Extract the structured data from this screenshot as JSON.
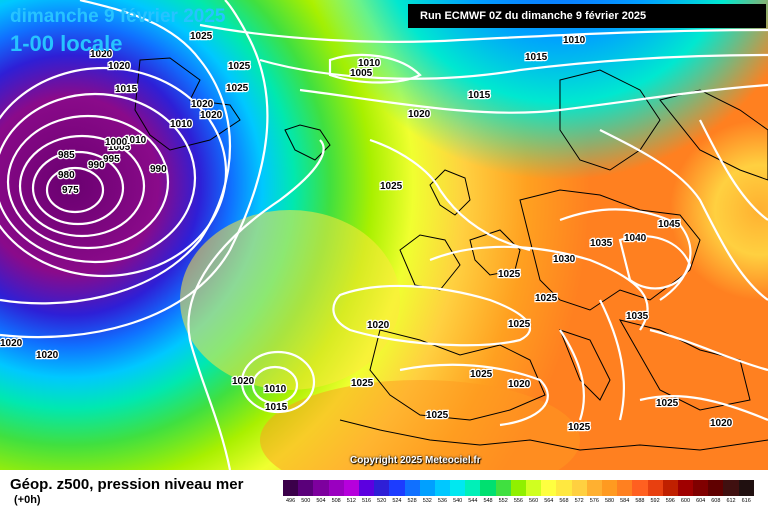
{
  "header": {
    "date": "dimanche 9 février 2025",
    "time": "1-00 locale",
    "run": "Run ECMWF 0Z du dimanche 9 février 2025"
  },
  "copyright": "Copyright 2025 Meteociel.fr",
  "legend": {
    "title": "Géop. z500, pression niveau mer",
    "subtitle": "(+0h)",
    "ticks": [
      "496",
      "500",
      "504",
      "508",
      "512",
      "516",
      "520",
      "524",
      "528",
      "532",
      "536",
      "540",
      "544",
      "548",
      "552",
      "556",
      "560",
      "564",
      "568",
      "572",
      "576",
      "580",
      "584",
      "588",
      "592",
      "596",
      "600",
      "604",
      "608",
      "612",
      "616"
    ],
    "colors": [
      "#3b004a",
      "#5a007a",
      "#7d009e",
      "#9a00c0",
      "#b600dc",
      "#5c00e0",
      "#2e1fd6",
      "#1c3cff",
      "#1070ff",
      "#00a0ff",
      "#00c8ff",
      "#00e8f0",
      "#00f0b8",
      "#00e070",
      "#40e040",
      "#90f000",
      "#d0ff20",
      "#ffff40",
      "#ffe840",
      "#ffd040",
      "#ffb030",
      "#ff9a20",
      "#ff8020",
      "#ff6020",
      "#e84010",
      "#c02000",
      "#a00000",
      "#800000",
      "#600000",
      "#401010",
      "#201010"
    ]
  },
  "pressure_labels": [
    {
      "text": "1025",
      "id": "p1"
    },
    {
      "text": "1020",
      "id": "p2"
    },
    {
      "text": "1020",
      "id": "p3"
    },
    {
      "text": "1025",
      "id": "p4"
    },
    {
      "text": "1015",
      "id": "p5"
    },
    {
      "text": "1025",
      "id": "p6"
    },
    {
      "text": "1020",
      "id": "p7"
    },
    {
      "text": "1020",
      "id": "p8"
    },
    {
      "text": "1010",
      "id": "p9"
    },
    {
      "text": "1010",
      "id": "p10"
    },
    {
      "text": "1005",
      "id": "p11"
    },
    {
      "text": "1000",
      "id": "p12"
    },
    {
      "text": "995",
      "id": "p13"
    },
    {
      "text": "990",
      "id": "p14"
    },
    {
      "text": "985",
      "id": "p15"
    },
    {
      "text": "980",
      "id": "p16"
    },
    {
      "text": "975",
      "id": "p17"
    },
    {
      "text": "990",
      "id": "p18"
    },
    {
      "text": "1010",
      "id": "p19"
    },
    {
      "text": "1005",
      "id": "p20"
    },
    {
      "text": "1015",
      "id": "p21"
    },
    {
      "text": "1010",
      "id": "p22"
    },
    {
      "text": "1015",
      "id": "p23"
    },
    {
      "text": "1020",
      "id": "p24"
    },
    {
      "text": "1025",
      "id": "p25"
    },
    {
      "text": "1035",
      "id": "p26"
    },
    {
      "text": "1040",
      "id": "p27"
    },
    {
      "text": "1045",
      "id": "p28"
    },
    {
      "text": "1030",
      "id": "p29"
    },
    {
      "text": "1025",
      "id": "p30"
    },
    {
      "text": "1025",
      "id": "p31"
    },
    {
      "text": "1025",
      "id": "p32"
    },
    {
      "text": "1035",
      "id": "p33"
    },
    {
      "text": "1020",
      "id": "p34"
    },
    {
      "text": "1020",
      "id": "p35"
    },
    {
      "text": "1020",
      "id": "p36"
    },
    {
      "text": "1020",
      "id": "p37"
    },
    {
      "text": "1010",
      "id": "p38"
    },
    {
      "text": "1015",
      "id": "p39"
    },
    {
      "text": "1025",
      "id": "p40"
    },
    {
      "text": "1025",
      "id": "p41"
    },
    {
      "text": "1020",
      "id": "p42"
    },
    {
      "text": "1025",
      "id": "p43"
    },
    {
      "text": "1025",
      "id": "p44"
    },
    {
      "text": "1025",
      "id": "p45"
    },
    {
      "text": "1020",
      "id": "p46"
    }
  ]
}
